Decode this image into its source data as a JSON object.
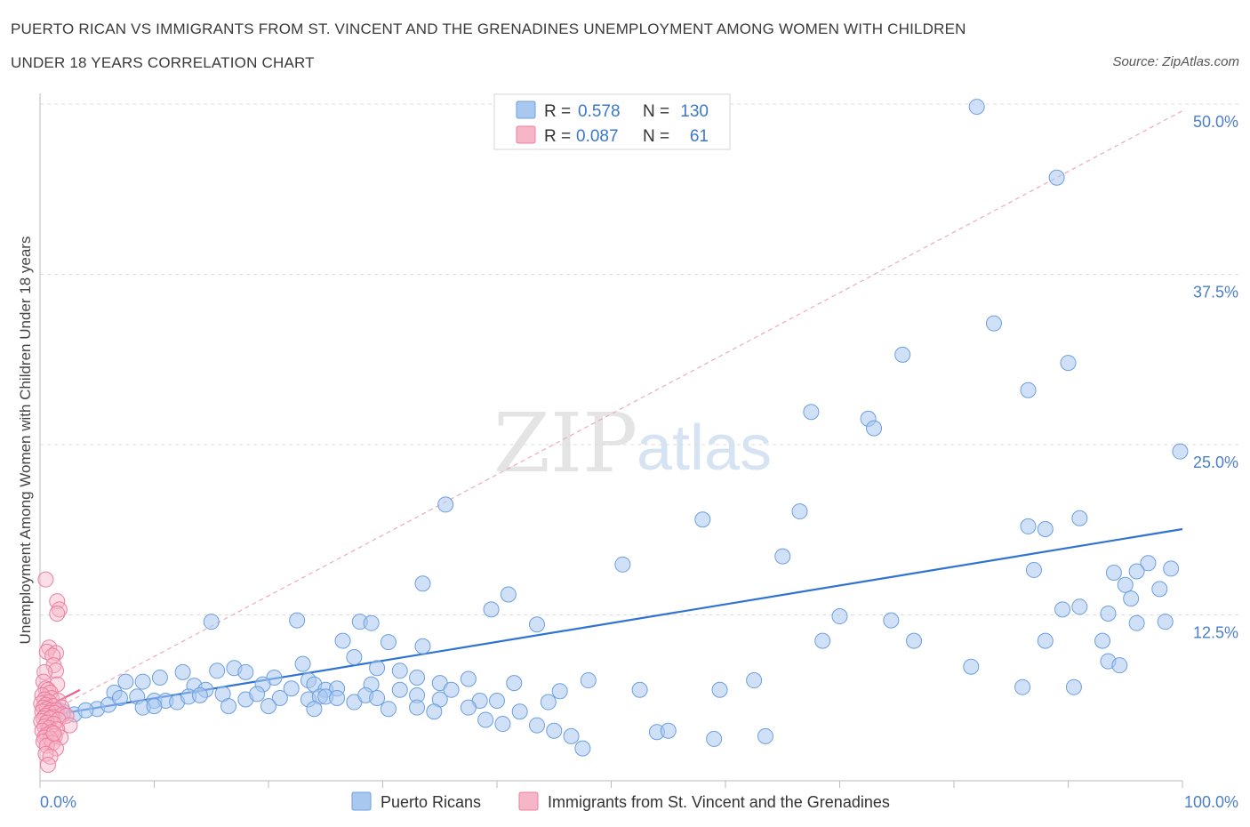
{
  "title_line1": "PUERTO RICAN VS IMMIGRANTS FROM ST. VINCENT AND THE GRENADINES UNEMPLOYMENT AMONG WOMEN WITH CHILDREN",
  "title_line2": "UNDER 18 YEARS CORRELATION CHART",
  "source": "Source: ZipAtlas.com",
  "watermark": {
    "zip": "ZIP",
    "atlas": "atlas"
  },
  "colors": {
    "blue_fill": "#a9c8f0",
    "blue_stroke": "#6d9fe0",
    "blue_line": "#2f73d3",
    "pink_fill": "#f6b6c8",
    "pink_stroke": "#ec7fa0",
    "pink_line": "#e8648c",
    "grid": "#dddddd",
    "tick_label": "#4a7fc9"
  },
  "legend": {
    "r_label": "R =",
    "n_label": "N =",
    "series1": {
      "r": "0.578",
      "n": "130"
    },
    "series2": {
      "r": "0.087",
      "n": "61"
    }
  },
  "chart_data": {
    "type": "scatter",
    "title": "PUERTO RICAN VS IMMIGRANTS FROM ST. VINCENT AND THE GRENADINES UNEMPLOYMENT AMONG WOMEN WITH CHILDREN UNDER 18 YEARS CORRELATION CHART",
    "xlabel": "",
    "ylabel": "Unemployment Among Women with Children Under 18 years",
    "xlim": [
      0,
      100
    ],
    "ylim": [
      0,
      50
    ],
    "x_tick_labels": [
      "0.0%",
      "100.0%"
    ],
    "y_ticks": [
      12.5,
      25.0,
      37.5,
      50.0
    ],
    "y_tick_labels": [
      "12.5%",
      "25.0%",
      "37.5%",
      "50.0%"
    ],
    "grid": "horizontal dashed",
    "legend_position": "top-center",
    "series": [
      {
        "name": "Puerto Ricans",
        "color": "#a9c8f0",
        "r": 0.578,
        "n": 130,
        "trend": {
          "x": [
            0,
            100
          ],
          "y": [
            5.0,
            18.8
          ]
        },
        "points": [
          [
            82,
            49.8
          ],
          [
            89,
            44.6
          ],
          [
            83.5,
            33.9
          ],
          [
            75.5,
            31.6
          ],
          [
            90,
            31.0
          ],
          [
            86.5,
            29.0
          ],
          [
            67.5,
            27.4
          ],
          [
            72.5,
            26.9
          ],
          [
            73,
            26.2
          ],
          [
            99.8,
            24.5
          ],
          [
            35.5,
            20.6
          ],
          [
            58,
            19.5
          ],
          [
            66.5,
            20.1
          ],
          [
            86.5,
            19.0
          ],
          [
            88,
            18.8
          ],
          [
            91,
            19.6
          ],
          [
            51,
            16.2
          ],
          [
            65,
            16.8
          ],
          [
            87,
            15.8
          ],
          [
            97,
            16.3
          ],
          [
            94,
            15.6
          ],
          [
            96,
            15.7
          ],
          [
            99,
            15.9
          ],
          [
            95,
            14.7
          ],
          [
            98,
            14.4
          ],
          [
            95.5,
            13.7
          ],
          [
            33.5,
            14.8
          ],
          [
            41,
            14.0
          ],
          [
            39.5,
            12.9
          ],
          [
            91,
            13.1
          ],
          [
            89.5,
            12.9
          ],
          [
            93.5,
            12.6
          ],
          [
            70,
            12.4
          ],
          [
            74.5,
            12.1
          ],
          [
            96,
            11.9
          ],
          [
            98.5,
            12.0
          ],
          [
            15,
            12.0
          ],
          [
            22.5,
            12.1
          ],
          [
            28,
            12.0
          ],
          [
            29,
            11.9
          ],
          [
            43.5,
            11.8
          ],
          [
            26.5,
            10.6
          ],
          [
            30.5,
            10.5
          ],
          [
            33.5,
            10.2
          ],
          [
            68.5,
            10.6
          ],
          [
            76.5,
            10.6
          ],
          [
            88,
            10.6
          ],
          [
            93,
            10.6
          ],
          [
            27.5,
            9.4
          ],
          [
            23,
            8.9
          ],
          [
            81.5,
            8.7
          ],
          [
            93.5,
            9.1
          ],
          [
            94.5,
            8.8
          ],
          [
            12.5,
            8.3
          ],
          [
            15.5,
            8.4
          ],
          [
            17,
            8.6
          ],
          [
            18,
            8.3
          ],
          [
            29.5,
            8.6
          ],
          [
            31.5,
            8.4
          ],
          [
            20.5,
            7.9
          ],
          [
            23.5,
            7.7
          ],
          [
            33,
            7.9
          ],
          [
            37.5,
            7.8
          ],
          [
            41.5,
            7.5
          ],
          [
            48,
            7.7
          ],
          [
            62.5,
            7.7
          ],
          [
            7.5,
            7.6
          ],
          [
            9,
            7.6
          ],
          [
            10.5,
            7.9
          ],
          [
            13.5,
            7.3
          ],
          [
            14.5,
            7.0
          ],
          [
            19.5,
            7.4
          ],
          [
            22,
            7.1
          ],
          [
            24,
            7.4
          ],
          [
            25,
            7.0
          ],
          [
            26,
            7.1
          ],
          [
            29,
            7.4
          ],
          [
            31.5,
            7.0
          ],
          [
            35,
            7.5
          ],
          [
            36,
            7.0
          ],
          [
            45.5,
            6.9
          ],
          [
            52.5,
            7.0
          ],
          [
            59.5,
            7.0
          ],
          [
            6.5,
            6.8
          ],
          [
            8.5,
            6.5
          ],
          [
            10,
            6.2
          ],
          [
            11,
            6.2
          ],
          [
            12,
            6.1
          ],
          [
            13,
            6.5
          ],
          [
            14,
            6.6
          ],
          [
            16,
            6.7
          ],
          [
            18,
            6.3
          ],
          [
            19,
            6.7
          ],
          [
            21,
            6.4
          ],
          [
            23.5,
            6.3
          ],
          [
            24.5,
            6.5
          ],
          [
            25,
            6.5
          ],
          [
            26,
            6.4
          ],
          [
            27.5,
            6.1
          ],
          [
            28.5,
            6.6
          ],
          [
            29.5,
            6.4
          ],
          [
            33,
            6.6
          ],
          [
            35,
            6.3
          ],
          [
            38.5,
            6.2
          ],
          [
            40,
            6.2
          ],
          [
            44.5,
            6.1
          ],
          [
            86,
            7.2
          ],
          [
            90.5,
            7.2
          ],
          [
            5,
            5.6
          ],
          [
            6,
            5.9
          ],
          [
            7,
            6.4
          ],
          [
            9,
            5.7
          ],
          [
            10,
            5.8
          ],
          [
            16.5,
            5.8
          ],
          [
            20,
            5.8
          ],
          [
            24,
            5.6
          ],
          [
            30.5,
            5.6
          ],
          [
            33,
            5.7
          ],
          [
            34.5,
            5.4
          ],
          [
            37.5,
            5.7
          ],
          [
            39,
            4.8
          ],
          [
            40.5,
            4.5
          ],
          [
            42,
            5.4
          ],
          [
            43.5,
            4.4
          ],
          [
            45,
            4.0
          ],
          [
            46.5,
            3.6
          ],
          [
            47.5,
            2.7
          ],
          [
            54,
            3.9
          ],
          [
            55,
            4.0
          ],
          [
            59,
            3.4
          ],
          [
            63.5,
            3.6
          ],
          [
            2,
            5.4
          ],
          [
            3,
            5.2
          ],
          [
            4,
            5.5
          ],
          [
            1.5,
            5.6
          ]
        ]
      },
      {
        "name": "Immigrants from St. Vincent and the Grenadines",
        "color": "#f6b6c8",
        "r": 0.087,
        "n": 61,
        "trend": {
          "x": [
            0,
            3.5
          ],
          "y": [
            5.5,
            7.0
          ]
        },
        "trend_dashed": {
          "x": [
            0,
            100
          ],
          "y": [
            5.0,
            49.5
          ]
        },
        "points": [
          [
            0.5,
            15.1
          ],
          [
            1.5,
            13.5
          ],
          [
            1.7,
            12.9
          ],
          [
            1.5,
            12.6
          ],
          [
            0.8,
            10.1
          ],
          [
            0.6,
            9.8
          ],
          [
            1.4,
            9.7
          ],
          [
            1.1,
            9.5
          ],
          [
            1.2,
            8.8
          ],
          [
            1.4,
            8.4
          ],
          [
            0.4,
            8.3
          ],
          [
            0.3,
            7.6
          ],
          [
            1.5,
            7.4
          ],
          [
            0.5,
            7.1
          ],
          [
            0.7,
            7.0
          ],
          [
            0.9,
            6.8
          ],
          [
            0.2,
            6.6
          ],
          [
            1.0,
            6.4
          ],
          [
            0.4,
            6.3
          ],
          [
            1.6,
            6.2
          ],
          [
            0.8,
            6.1
          ],
          [
            0.1,
            6.0
          ],
          [
            0.5,
            5.9
          ],
          [
            1.2,
            5.8
          ],
          [
            0.3,
            5.7
          ],
          [
            1.9,
            5.7
          ],
          [
            0.6,
            5.6
          ],
          [
            1.0,
            5.5
          ],
          [
            1.4,
            5.5
          ],
          [
            0.2,
            5.4
          ],
          [
            0.8,
            5.3
          ],
          [
            1.3,
            5.3
          ],
          [
            2.0,
            5.2
          ],
          [
            0.5,
            5.1
          ],
          [
            1.1,
            5.0
          ],
          [
            2.3,
            5.1
          ],
          [
            0.3,
            4.9
          ],
          [
            0.9,
            4.9
          ],
          [
            1.6,
            4.8
          ],
          [
            0.1,
            4.7
          ],
          [
            0.6,
            4.6
          ],
          [
            1.2,
            4.5
          ],
          [
            2.6,
            4.4
          ],
          [
            0.4,
            4.3
          ],
          [
            0.8,
            4.2
          ],
          [
            1.5,
            4.1
          ],
          [
            0.2,
            4.0
          ],
          [
            1.0,
            3.9
          ],
          [
            0.6,
            3.7
          ],
          [
            1.3,
            3.6
          ],
          [
            0.4,
            3.5
          ],
          [
            1.8,
            3.5
          ],
          [
            0.9,
            3.4
          ],
          [
            0.3,
            3.2
          ],
          [
            1.1,
            3.1
          ],
          [
            0.6,
            2.9
          ],
          [
            1.4,
            2.7
          ],
          [
            0.5,
            2.3
          ],
          [
            0.9,
            2.1
          ],
          [
            0.7,
            1.5
          ],
          [
            1.2,
            3.8
          ]
        ]
      }
    ]
  }
}
